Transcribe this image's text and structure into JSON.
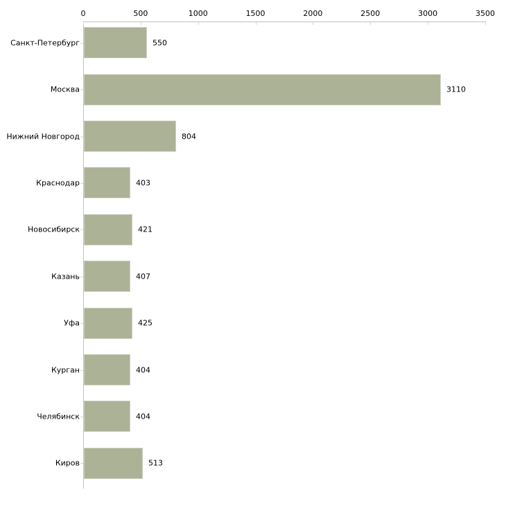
{
  "chart_data": {
    "type": "bar",
    "orientation": "horizontal",
    "title": "",
    "xlabel": "",
    "ylabel": "",
    "categories": [
      "Санкт-Петербург",
      "Москва",
      "Нижний Новгород",
      "Краснодар",
      "Новосибирск",
      "Казань",
      "Уфа",
      "Курган",
      "Челябинск",
      "Киров"
    ],
    "values": [
      550,
      3110,
      804,
      403,
      421,
      407,
      425,
      404,
      404,
      513
    ],
    "value_labels": [
      "550",
      "3110",
      "804",
      "403",
      "421",
      "407",
      "425",
      "404",
      "404",
      "513"
    ],
    "x_ticks": [
      0,
      500,
      1000,
      1500,
      2000,
      2500,
      3000,
      3500
    ],
    "x_tick_labels": [
      "0",
      "500",
      "1000",
      "1500",
      "2000",
      "2500",
      "3000",
      "3500"
    ],
    "xlim": [
      0,
      3500
    ],
    "grid": false,
    "legend": null,
    "x_axis_position": "top",
    "colors": {
      "bar_fill": "#acb296",
      "bar_border": "#ccd0bf",
      "axis_line": "#c0c0c0",
      "tick_mark": "#d8dcb6",
      "label_text": "#000000",
      "background": "#ffffff"
    }
  }
}
